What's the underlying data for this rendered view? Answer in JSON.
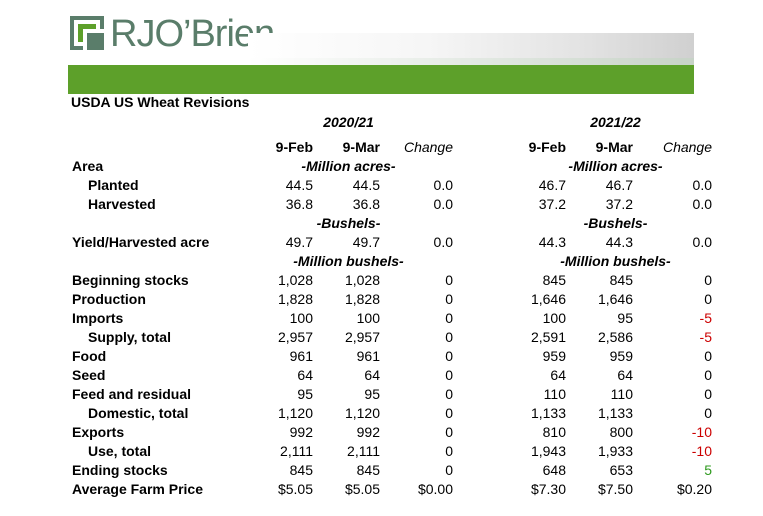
{
  "brand": {
    "name": "RJO’Brien",
    "accent_green": "#5da02a",
    "logo_color": "#5a7d6a"
  },
  "title": "USDA US Wheat Revisions",
  "periods": [
    {
      "label": "2020/21",
      "cols": [
        "9-Feb",
        "9-Mar",
        "Change"
      ]
    },
    {
      "label": "2021/22",
      "cols": [
        "9-Feb",
        "9-Mar",
        "Change"
      ]
    }
  ],
  "units": {
    "acres": "-Million acres-",
    "bushels": "-Bushels-",
    "mbushels": "-Million bushels-"
  },
  "rows": [
    {
      "label": "Area",
      "indent": false,
      "a": [
        "",
        "",
        ""
      ],
      "b": [
        "",
        "",
        ""
      ]
    },
    {
      "label": "Planted",
      "indent": true,
      "a": [
        "44.5",
        "44.5",
        "0.0"
      ],
      "b": [
        "46.7",
        "46.7",
        "0.0"
      ]
    },
    {
      "label": "Harvested",
      "indent": true,
      "a": [
        "36.8",
        "36.8",
        "0.0"
      ],
      "b": [
        "37.2",
        "37.2",
        "0.0"
      ]
    },
    {
      "label": "Yield/Harvested acre",
      "indent": false,
      "a": [
        "49.7",
        "49.7",
        "0.0"
      ],
      "b": [
        "44.3",
        "44.3",
        "0.0"
      ]
    },
    {
      "label": "Beginning stocks",
      "indent": false,
      "a": [
        "1,028",
        "1,028",
        "0"
      ],
      "b": [
        "845",
        "845",
        "0"
      ]
    },
    {
      "label": "Production",
      "indent": false,
      "a": [
        "1,828",
        "1,828",
        "0"
      ],
      "b": [
        "1,646",
        "1,646",
        "0"
      ]
    },
    {
      "label": "Imports",
      "indent": false,
      "a": [
        "100",
        "100",
        "0"
      ],
      "b": [
        "100",
        "95",
        "-5"
      ]
    },
    {
      "label": "Supply, total",
      "indent": true,
      "a": [
        "2,957",
        "2,957",
        "0"
      ],
      "b": [
        "2,591",
        "2,586",
        "-5"
      ]
    },
    {
      "label": "Food",
      "indent": false,
      "a": [
        "961",
        "961",
        "0"
      ],
      "b": [
        "959",
        "959",
        "0"
      ]
    },
    {
      "label": "Seed",
      "indent": false,
      "a": [
        "64",
        "64",
        "0"
      ],
      "b": [
        "64",
        "64",
        "0"
      ]
    },
    {
      "label": "Feed and residual",
      "indent": false,
      "a": [
        "95",
        "95",
        "0"
      ],
      "b": [
        "110",
        "110",
        "0"
      ]
    },
    {
      "label": "Domestic, total",
      "indent": true,
      "a": [
        "1,120",
        "1,120",
        "0"
      ],
      "b": [
        "1,133",
        "1,133",
        "0"
      ]
    },
    {
      "label": "Exports",
      "indent": false,
      "a": [
        "992",
        "992",
        "0"
      ],
      "b": [
        "810",
        "800",
        "-10"
      ]
    },
    {
      "label": "Use, total",
      "indent": true,
      "a": [
        "2,111",
        "2,111",
        "0"
      ],
      "b": [
        "1,943",
        "1,933",
        "-10"
      ]
    },
    {
      "label": "Ending stocks",
      "indent": false,
      "a": [
        "845",
        "845",
        "0"
      ],
      "b": [
        "648",
        "653",
        "5"
      ]
    },
    {
      "label": "Average Farm Price",
      "indent": false,
      "a": [
        "$5.05",
        "$5.05",
        "$0.00"
      ],
      "b": [
        "$7.30",
        "$7.50",
        "$0.20"
      ]
    }
  ],
  "colors": {
    "negative": "#cc0000",
    "positive": "#2e9a1e"
  }
}
